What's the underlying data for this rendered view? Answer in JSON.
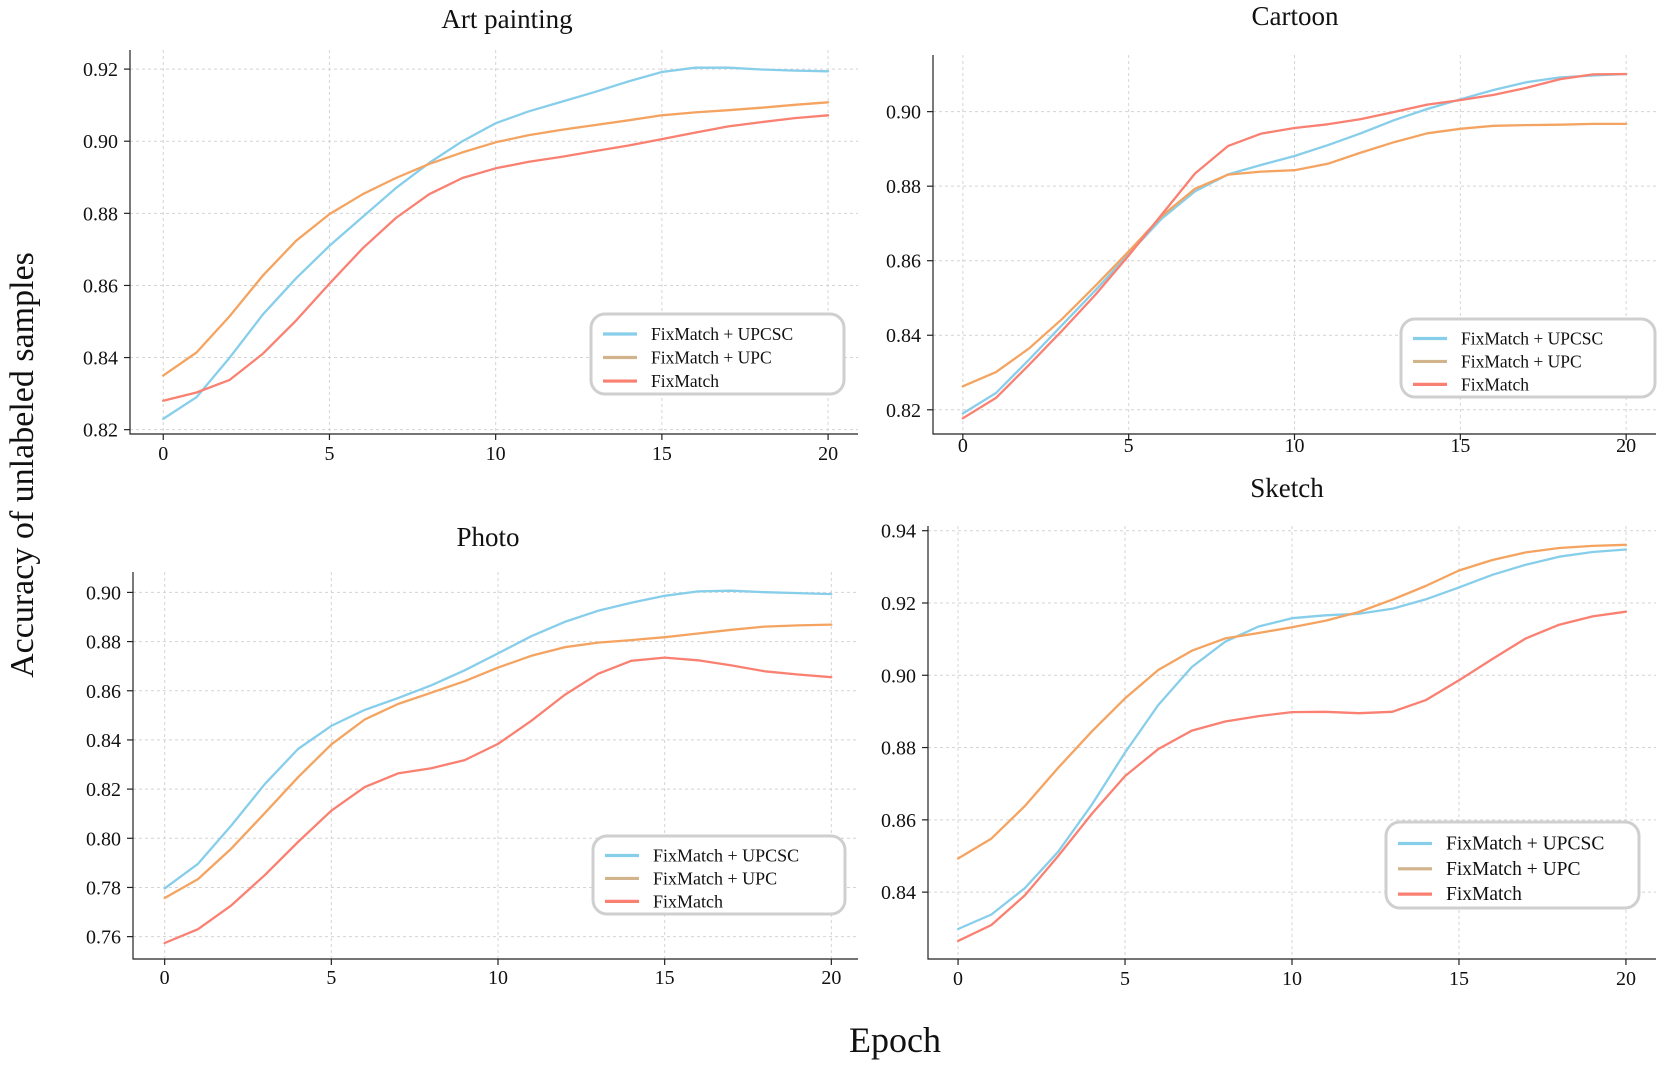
{
  "figure": {
    "ylabel": "Accuracy of unlabeled samples",
    "xlabel": "Epoch"
  },
  "colors": {
    "FixMatch + UPCSC": "#87ceeb",
    "FixMatch + UPC": "#f4a460",
    "FixMatch": "#fa8072",
    "legend_swatch_upc": "#d2b48c"
  },
  "chart_data": [
    {
      "type": "line",
      "title": "Art painting",
      "x": [
        0,
        1,
        2,
        3,
        4,
        5,
        6,
        7,
        8,
        9,
        10,
        11,
        12,
        13,
        14,
        15,
        16,
        17,
        18,
        19,
        20
      ],
      "xticks": [
        0,
        5,
        10,
        15,
        20
      ],
      "yticks": [
        0.82,
        0.84,
        0.86,
        0.88,
        0.9,
        0.92
      ],
      "xlim": [
        -1,
        20.9
      ],
      "ylim": [
        0.8188,
        0.9253
      ],
      "legend_position": "right",
      "series": [
        {
          "name": "FixMatch + UPCSC",
          "values": [
            0.823,
            0.829,
            0.84,
            0.852,
            0.862,
            0.871,
            0.879,
            0.887,
            0.894,
            0.9,
            0.905,
            0.9083,
            0.911,
            0.9137,
            0.9166,
            0.9192,
            0.9204,
            0.9204,
            0.9199,
            0.9196,
            0.9194
          ]
        },
        {
          "name": "FixMatch + UPC",
          "values": [
            0.835,
            0.8414,
            0.8515,
            0.8628,
            0.8724,
            0.8798,
            0.8853,
            0.8898,
            0.8937,
            0.8969,
            0.8997,
            0.9017,
            0.9032,
            0.9045,
            0.9058,
            0.9072,
            0.908,
            0.9086,
            0.9093,
            0.9101,
            0.9108
          ]
        },
        {
          "name": "FixMatch",
          "values": [
            0.828,
            0.8303,
            0.8338,
            0.8411,
            0.8503,
            0.8605,
            0.8703,
            0.8787,
            0.8853,
            0.8898,
            0.8925,
            0.8943,
            0.8957,
            0.8973,
            0.8988,
            0.9006,
            0.9024,
            0.9041,
            0.9053,
            0.9064,
            0.9072
          ]
        }
      ]
    },
    {
      "type": "line",
      "title": "Cartoon",
      "x": [
        0,
        1,
        2,
        3,
        4,
        5,
        6,
        7,
        8,
        9,
        10,
        11,
        12,
        13,
        14,
        15,
        16,
        17,
        18,
        19,
        20
      ],
      "xticks": [
        0,
        5,
        10,
        15,
        20
      ],
      "yticks": [
        0.82,
        0.84,
        0.86,
        0.88,
        0.9
      ],
      "xlim": [
        -0.9,
        20.9
      ],
      "ylim": [
        0.8135,
        0.9152
      ],
      "legend_position": "right",
      "series": [
        {
          "name": "FixMatch + UPCSC",
          "values": [
            0.819,
            0.8245,
            0.8335,
            0.8428,
            0.8521,
            0.8618,
            0.8713,
            0.8786,
            0.8832,
            0.8857,
            0.8881,
            0.891,
            0.8942,
            0.8977,
            0.9007,
            0.9033,
            0.9058,
            0.9079,
            0.9092,
            0.9097,
            0.9101
          ]
        },
        {
          "name": "FixMatch + UPC",
          "values": [
            0.8263,
            0.8301,
            0.8365,
            0.8444,
            0.8533,
            0.8625,
            0.872,
            0.8793,
            0.8831,
            0.8839,
            0.8843,
            0.886,
            0.889,
            0.8918,
            0.8942,
            0.8954,
            0.8962,
            0.8964,
            0.8965,
            0.8967,
            0.8967
          ]
        },
        {
          "name": "FixMatch",
          "values": [
            0.8177,
            0.8232,
            0.8321,
            0.8413,
            0.8509,
            0.8614,
            0.8724,
            0.8834,
            0.8908,
            0.8941,
            0.8956,
            0.8966,
            0.898,
            0.8999,
            0.9019,
            0.9031,
            0.9045,
            0.9064,
            0.9087,
            0.91,
            0.9101
          ]
        }
      ]
    },
    {
      "type": "line",
      "title": "Photo",
      "x": [
        0,
        1,
        2,
        3,
        4,
        5,
        6,
        7,
        8,
        9,
        10,
        11,
        12,
        13,
        14,
        15,
        16,
        17,
        18,
        19,
        20
      ],
      "xticks": [
        0,
        5,
        10,
        15,
        20
      ],
      "yticks": [
        0.76,
        0.78,
        0.8,
        0.82,
        0.84,
        0.86,
        0.88,
        0.9
      ],
      "xlim": [
        -0.95,
        20.8
      ],
      "ylim": [
        0.7509,
        0.9083
      ],
      "legend_position": "right",
      "series": [
        {
          "name": "FixMatch + UPCSC",
          "values": [
            0.7796,
            0.7896,
            0.8052,
            0.822,
            0.8363,
            0.8457,
            0.8522,
            0.857,
            0.8622,
            0.8683,
            0.8752,
            0.8822,
            0.888,
            0.8925,
            0.8958,
            0.8986,
            0.9004,
            0.9007,
            0.9001,
            0.8997,
            0.8993
          ]
        },
        {
          "name": "FixMatch + UPC",
          "values": [
            0.7757,
            0.7834,
            0.7958,
            0.8102,
            0.8248,
            0.8382,
            0.8483,
            0.8546,
            0.8592,
            0.8639,
            0.8694,
            0.8742,
            0.8777,
            0.8796,
            0.8806,
            0.8818,
            0.8833,
            0.8848,
            0.8861,
            0.8866,
            0.8869
          ]
        },
        {
          "name": "FixMatch",
          "values": [
            0.7574,
            0.763,
            0.7727,
            0.785,
            0.7985,
            0.8112,
            0.8208,
            0.8264,
            0.8285,
            0.8318,
            0.8384,
            0.8478,
            0.8583,
            0.8669,
            0.8722,
            0.8735,
            0.8724,
            0.8703,
            0.8679,
            0.8666,
            0.8655
          ]
        }
      ]
    },
    {
      "type": "line",
      "title": "Sketch",
      "x": [
        0,
        1,
        2,
        3,
        4,
        5,
        6,
        7,
        8,
        9,
        10,
        11,
        12,
        13,
        14,
        15,
        16,
        17,
        18,
        19,
        20
      ],
      "xticks": [
        0,
        5,
        10,
        15,
        20
      ],
      "yticks": [
        0.84,
        0.86,
        0.88,
        0.9,
        0.92,
        0.94
      ],
      "xlim": [
        -0.9,
        20.9
      ],
      "ylim": [
        0.8215,
        0.9413
      ],
      "legend_position": "right",
      "series": [
        {
          "name": "FixMatch + UPCSC",
          "values": [
            0.8298,
            0.8338,
            0.8411,
            0.8512,
            0.8641,
            0.8786,
            0.8918,
            0.9023,
            0.9093,
            0.9135,
            0.9158,
            0.9166,
            0.917,
            0.9184,
            0.921,
            0.9243,
            0.9278,
            0.9306,
            0.9328,
            0.9341,
            0.9348
          ]
        },
        {
          "name": "FixMatch + UPC",
          "values": [
            0.8493,
            0.8548,
            0.8638,
            0.8744,
            0.8844,
            0.8936,
            0.9015,
            0.9068,
            0.9102,
            0.9117,
            0.9133,
            0.9151,
            0.9175,
            0.9209,
            0.9247,
            0.929,
            0.9319,
            0.934,
            0.9352,
            0.9358,
            0.9361
          ]
        },
        {
          "name": "FixMatch",
          "values": [
            0.8265,
            0.8309,
            0.8391,
            0.85,
            0.8616,
            0.8721,
            0.8796,
            0.8847,
            0.8872,
            0.8887,
            0.8898,
            0.8899,
            0.8895,
            0.8899,
            0.8931,
            0.8986,
            0.9045,
            0.9102,
            0.914,
            0.9163,
            0.9176
          ]
        }
      ]
    }
  ]
}
